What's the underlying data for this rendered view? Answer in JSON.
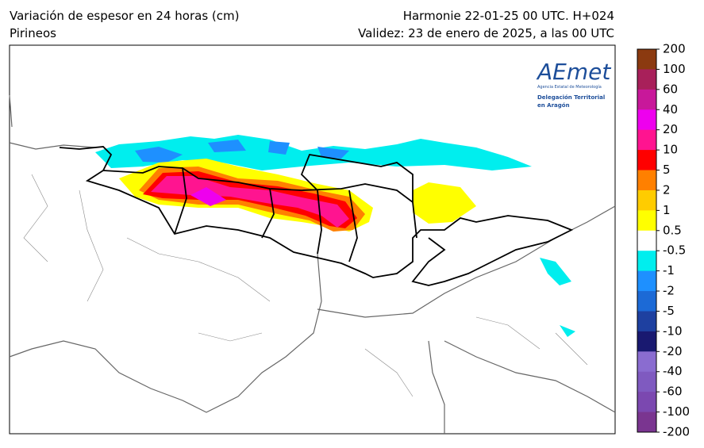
{
  "header": {
    "title": "Variación de espesor en 24 horas (cm)",
    "subtitle": "Pirineos",
    "model": "Harmonie 22-01-25 00 UTC. H+024",
    "validity": "Validez: 23 de enero de 2025, a las 00 UTC"
  },
  "logo": {
    "name": "AEmet",
    "agency": "Agencia Estatal de Meteorología",
    "office": "Delegación Territorial",
    "region": "en Aragón"
  },
  "colorbar": {
    "levels": [
      200,
      100,
      60,
      40,
      20,
      10,
      5,
      2,
      1,
      0.5,
      -0.5,
      -1,
      -2,
      -5,
      -10,
      -20,
      -40,
      -60,
      -100,
      -200
    ],
    "colors": [
      "#8b3a10",
      "#a8205a",
      "#c8189a",
      "#ee00ee",
      "#ff1490",
      "#ff0000",
      "#ff8000",
      "#ffcc00",
      "#ffff00",
      "#ffffff",
      "#00eeee",
      "#1e90ff",
      "#1c6ad6",
      "#1e40a0",
      "#191970",
      "#8a6cd0",
      "#7f5ac0",
      "#7b48b0",
      "#7a3590"
    ]
  }
}
